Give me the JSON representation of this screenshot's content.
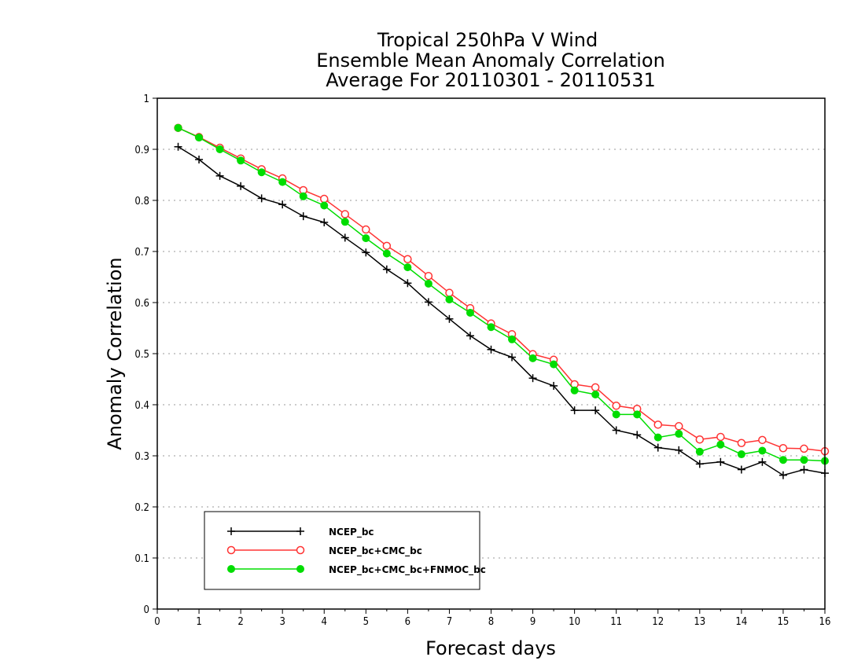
{
  "chart_data": {
    "type": "line",
    "title_lines": [
      "Tropical 250hPa V Wind",
      "Ensemble Mean Anomaly Correlation",
      "Average For 20110301 - 20110531"
    ],
    "xlabel": "Forecast days",
    "ylabel": "Anomaly Correlation",
    "xlim": [
      0,
      16
    ],
    "ylim": [
      0,
      1
    ],
    "x_ticks": [
      0,
      1,
      2,
      3,
      4,
      5,
      6,
      7,
      8,
      9,
      10,
      11,
      12,
      13,
      14,
      15,
      16
    ],
    "y_ticks": [
      0,
      0.1,
      0.2,
      0.3,
      0.4,
      0.5,
      0.6,
      0.7,
      0.8,
      0.9,
      1
    ],
    "y_tick_labels": [
      "0",
      "0.1",
      "0.2",
      "0.3",
      "0.4",
      "0.5",
      "0.6",
      "0.7",
      "0.8",
      "0.9",
      "1"
    ],
    "grid": "horizontal-dotted",
    "legend_position": "bottom-left",
    "x": [
      0.5,
      1,
      1.5,
      2,
      2.5,
      3,
      3.5,
      4,
      4.5,
      5,
      5.5,
      6,
      6.5,
      7,
      7.5,
      8,
      8.5,
      9,
      9.5,
      10,
      10.5,
      11,
      11.5,
      12,
      12.5,
      13,
      13.5,
      14,
      14.5,
      15,
      15.5,
      16
    ],
    "series": [
      {
        "name": "NCEP_bc",
        "color": "#000000",
        "marker": "plus",
        "values": [
          0.905,
          0.88,
          0.848,
          0.828,
          0.804,
          0.792,
          0.769,
          0.757,
          0.727,
          0.698,
          0.665,
          0.638,
          0.601,
          0.568,
          0.535,
          0.508,
          0.493,
          0.452,
          0.437,
          0.389,
          0.389,
          0.35,
          0.341,
          0.316,
          0.311,
          0.284,
          0.288,
          0.273,
          0.288,
          0.262,
          0.273,
          0.266
        ]
      },
      {
        "name": "NCEP_bc+CMC_bc",
        "color": "#ff3333",
        "marker": "open-circle",
        "values": [
          0.942,
          0.924,
          0.903,
          0.882,
          0.861,
          0.843,
          0.82,
          0.803,
          0.773,
          0.743,
          0.711,
          0.685,
          0.652,
          0.619,
          0.589,
          0.559,
          0.538,
          0.499,
          0.488,
          0.44,
          0.434,
          0.398,
          0.392,
          0.361,
          0.358,
          0.332,
          0.337,
          0.325,
          0.331,
          0.315,
          0.314,
          0.309
        ]
      },
      {
        "name": "NCEP_bc+CMC_bc+FNMOC_bc",
        "color": "#00dd00",
        "marker": "filled-circle",
        "values": [
          0.942,
          0.923,
          0.9,
          0.878,
          0.855,
          0.836,
          0.808,
          0.79,
          0.758,
          0.726,
          0.696,
          0.669,
          0.637,
          0.606,
          0.58,
          0.552,
          0.528,
          0.491,
          0.479,
          0.428,
          0.42,
          0.381,
          0.381,
          0.336,
          0.343,
          0.308,
          0.322,
          0.303,
          0.31,
          0.292,
          0.292,
          0.29
        ]
      }
    ]
  }
}
